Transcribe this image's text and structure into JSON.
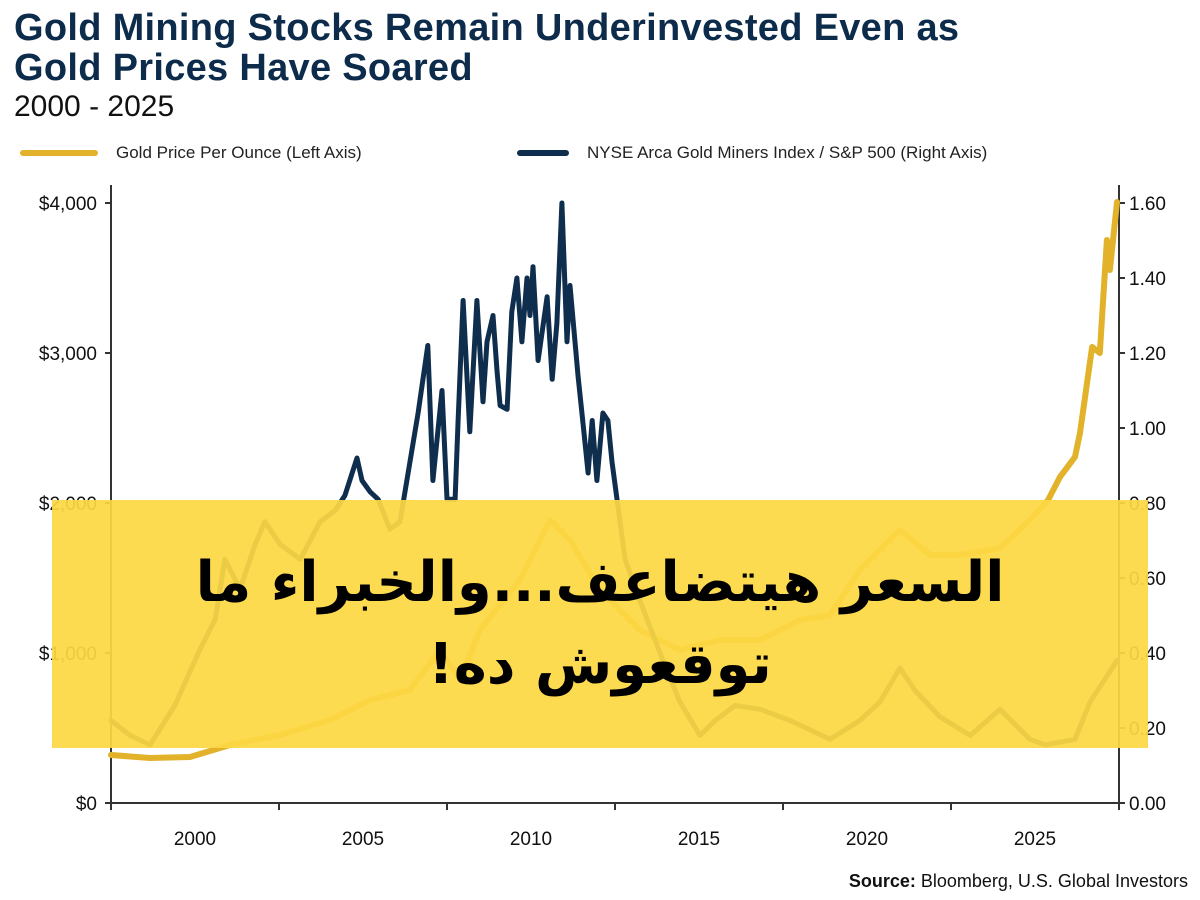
{
  "header": {
    "title_line1": "Gold Mining Stocks Remain Underinvested Even as",
    "title_line2": "Gold Prices Have Soared",
    "subtitle": "2000 - 2025"
  },
  "overlay": {
    "line1": "السعر هيتضاعف...والخبراء ما",
    "line2": "توقعوش ده!"
  },
  "source": {
    "label": "Source:",
    "text": "Bloomberg, U.S. Global Investors"
  },
  "colors": {
    "gold": "#e1b22a",
    "navy": "#0f2e4d",
    "overlay": "#fdd844"
  },
  "chart_data": {
    "type": "line",
    "title": "Gold Mining Stocks Remain Underinvested Even as Gold Prices Have Soared",
    "subtitle": "2000 - 2025",
    "xlabel": "",
    "xlim": [
      1997.5,
      2027.5
    ],
    "x_tick_labels": [
      "2000",
      "2005",
      "2010",
      "2015",
      "2020",
      "2025"
    ],
    "x_tick_values": [
      2000,
      2005,
      2010,
      2015,
      2020,
      2025
    ],
    "y_left": {
      "lim": [
        0,
        4000
      ],
      "ticks": [
        0,
        1000,
        2000,
        3000,
        4000
      ],
      "tick_labels": [
        "$0",
        "$1,000",
        "$2,000",
        "$3,000",
        "$4,000"
      ]
    },
    "y_right": {
      "lim": [
        0,
        1.6
      ],
      "ticks": [
        0,
        0.2,
        0.4,
        0.6,
        0.8,
        1.0,
        1.2,
        1.4,
        1.6
      ],
      "tick_labels": [
        "0.00",
        "0.20",
        "0.40",
        "0.60",
        "0.80",
        "1.00",
        "1.20",
        "1.40",
        "1.60"
      ]
    },
    "grid": false,
    "legend_position": "top",
    "series": [
      {
        "name": "Gold Price Per Ounce (Left Axis)",
        "axis": "left",
        "x": [
          1997.5,
          1998.66,
          1999.85,
          2001.04,
          2002.53,
          2004.02,
          2005.21,
          2006.4,
          2007.29,
          2007.89,
          2008.48,
          2009.67,
          2010.57,
          2011.16,
          2012.05,
          2013.24,
          2014.43,
          2015.63,
          2016.82,
          2018.01,
          2018.9,
          2019.79,
          2020.98,
          2021.88,
          2022.77,
          2023.96,
          2024.85,
          2025.39,
          2025.74,
          2026.19,
          2026.34,
          2026.7,
          2026.93,
          2027.14,
          2027.23,
          2027.44
        ],
        "y": [
          320,
          300,
          307,
          387,
          453,
          553,
          687,
          753,
          1020,
          820,
          1153,
          1487,
          1887,
          1753,
          1420,
          1153,
          1020,
          1087,
          1087,
          1220,
          1253,
          1553,
          1820,
          1653,
          1653,
          1700,
          1887,
          2020,
          2173,
          2307,
          2467,
          3040,
          3000,
          3753,
          3553,
          4007
        ]
      },
      {
        "name": "NYSE Arca Gold Miners Index / S&P 500 (Right Axis)",
        "axis": "right",
        "x": [
          1997.5,
          1998.07,
          1998.66,
          1999.4,
          2000.15,
          2000.6,
          2000.89,
          2001.34,
          2001.79,
          2002.08,
          2002.53,
          2003.13,
          2003.72,
          2004.17,
          2004.46,
          2004.82,
          2004.97,
          2005.21,
          2005.45,
          2005.8,
          2006.1,
          2006.49,
          2006.64,
          2006.93,
          2007.08,
          2007.35,
          2007.5,
          2007.74,
          2007.83,
          2007.98,
          2008.18,
          2008.39,
          2008.57,
          2008.69,
          2008.87,
          2008.99,
          2009.08,
          2009.29,
          2009.43,
          2009.58,
          2009.73,
          2009.88,
          2009.97,
          2010.06,
          2010.21,
          2010.48,
          2010.63,
          2010.77,
          2010.92,
          2011.07,
          2011.16,
          2011.31,
          2011.4,
          2011.55,
          2011.7,
          2011.82,
          2011.96,
          2012.14,
          2012.29,
          2012.41,
          2012.56,
          2012.8,
          2013.24,
          2013.84,
          2014.43,
          2015.03,
          2015.48,
          2016.07,
          2016.82,
          2017.71,
          2018.9,
          2019.79,
          2020.39,
          2020.98,
          2021.43,
          2022.17,
          2023.07,
          2023.96,
          2024.85,
          2025.3,
          2026.19,
          2026.64,
          2027.08,
          2027.44
        ],
        "y": [
          0.22,
          0.18,
          0.155,
          0.26,
          0.41,
          0.49,
          0.65,
          0.57,
          0.69,
          0.75,
          0.69,
          0.65,
          0.75,
          0.78,
          0.82,
          0.92,
          0.86,
          0.83,
          0.81,
          0.73,
          0.75,
          0.96,
          1.04,
          1.22,
          0.86,
          1.1,
          0.81,
          0.81,
          1.02,
          1.34,
          0.99,
          1.34,
          1.07,
          1.23,
          1.3,
          1.15,
          1.06,
          1.05,
          1.31,
          1.4,
          1.23,
          1.4,
          1.3,
          1.43,
          1.18,
          1.35,
          1.13,
          1.28,
          1.6,
          1.23,
          1.38,
          1.23,
          1.14,
          1.01,
          0.88,
          1.02,
          0.86,
          1.04,
          1.02,
          0.91,
          0.81,
          0.65,
          0.54,
          0.4,
          0.27,
          0.18,
          0.22,
          0.26,
          0.25,
          0.22,
          0.17,
          0.22,
          0.27,
          0.36,
          0.3,
          0.23,
          0.18,
          0.25,
          0.17,
          0.155,
          0.17,
          0.27,
          0.33,
          0.38
        ]
      }
    ]
  }
}
